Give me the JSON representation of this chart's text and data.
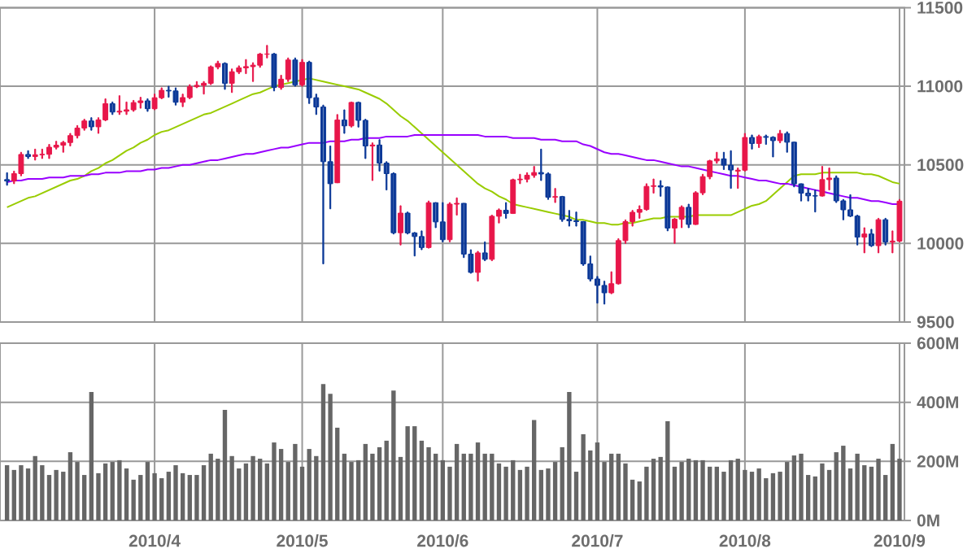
{
  "chart_data": [
    {
      "type": "candlestick",
      "categories": [
        null,
        null,
        null,
        null,
        null,
        null,
        null,
        null,
        null,
        null,
        null,
        null,
        null,
        null,
        null,
        null,
        null,
        null,
        null,
        null,
        null,
        "2010/4",
        null,
        null,
        null,
        null,
        null,
        null,
        null,
        null,
        null,
        null,
        null,
        null,
        null,
        null,
        null,
        null,
        null,
        null,
        null,
        null,
        "2010/5",
        null,
        null,
        null,
        null,
        null,
        null,
        null,
        null,
        null,
        null,
        null,
        null,
        null,
        null,
        null,
        null,
        null,
        null,
        null,
        "2010/6",
        null,
        null,
        null,
        null,
        null,
        null,
        null,
        null,
        null,
        null,
        null,
        null,
        null,
        null,
        null,
        null,
        null,
        null,
        null,
        null,
        null,
        "2010/7",
        null,
        null,
        null,
        null,
        null,
        null,
        null,
        null,
        null,
        null,
        null,
        null,
        null,
        null,
        null,
        null,
        null,
        null,
        null,
        null,
        "2010/8",
        null,
        null,
        null,
        null,
        null,
        null,
        null,
        null,
        null,
        null,
        null,
        null,
        null,
        null,
        null,
        null,
        null,
        null,
        null,
        null,
        null,
        "2010/9"
      ],
      "ohlc": [
        [
          10406,
          10450,
          10370,
          10397
        ],
        [
          10397,
          10460,
          10380,
          10444
        ],
        [
          10444,
          10580,
          10430,
          10566
        ],
        [
          10566,
          10590,
          10540,
          10553
        ],
        [
          10553,
          10600,
          10530,
          10564
        ],
        [
          10564,
          10600,
          10540,
          10567
        ],
        [
          10567,
          10630,
          10540,
          10612
        ],
        [
          10612,
          10650,
          10600,
          10625
        ],
        [
          10625,
          10650,
          10580,
          10642
        ],
        [
          10642,
          10700,
          10620,
          10686
        ],
        [
          10686,
          10750,
          10670,
          10734
        ],
        [
          10734,
          10790,
          10720,
          10779
        ],
        [
          10779,
          10800,
          10720,
          10742
        ],
        [
          10742,
          10800,
          10700,
          10786
        ],
        [
          10786,
          10920,
          10780,
          10889
        ],
        [
          10889,
          10900,
          10820,
          10836
        ],
        [
          10836,
          10940,
          10820,
          10841
        ],
        [
          10841,
          10900,
          10820,
          10850
        ],
        [
          10850,
          10910,
          10840,
          10896
        ],
        [
          10896,
          10930,
          10860,
          10907
        ],
        [
          10907,
          10920,
          10840,
          10857
        ],
        [
          10857,
          10950,
          10850,
          10927
        ],
        [
          10927,
          10990,
          10920,
          10974
        ],
        [
          10974,
          11000,
          10930,
          10970
        ],
        [
          10970,
          10990,
          10880,
          10898
        ],
        [
          10898,
          10950,
          10870,
          10928
        ],
        [
          10928,
          11010,
          10920,
          10997
        ],
        [
          10997,
          11030,
          10990,
          11006
        ],
        [
          11006,
          11030,
          10950,
          11019
        ],
        [
          11019,
          11130,
          11010,
          11123
        ],
        [
          11123,
          11160,
          11110,
          11145
        ],
        [
          11145,
          11150,
          10980,
          11019
        ],
        [
          11019,
          11110,
          10960,
          11092
        ],
        [
          11092,
          11130,
          11080,
          11117
        ],
        [
          11117,
          11170,
          11080,
          11125
        ],
        [
          11125,
          11150,
          11030,
          11134
        ],
        [
          11134,
          11210,
          11120,
          11204
        ],
        [
          11204,
          11260,
          11180,
          11205
        ],
        [
          11205,
          11210,
          10970,
          10992
        ],
        [
          10992,
          11070,
          10980,
          11045
        ],
        [
          11045,
          11180,
          11030,
          11167
        ],
        [
          11167,
          11180,
          11000,
          11009
        ],
        [
          11009,
          11170,
          11000,
          11152
        ],
        [
          11152,
          11160,
          10890,
          10927
        ],
        [
          10927,
          10950,
          10820,
          10868
        ],
        [
          10868,
          10880,
          9870,
          10520
        ],
        [
          10520,
          10620,
          10220,
          10380
        ],
        [
          10386,
          10820,
          10386,
          10785
        ],
        [
          10785,
          10850,
          10700,
          10748
        ],
        [
          10748,
          10900,
          10740,
          10897
        ],
        [
          10897,
          10900,
          10740,
          10783
        ],
        [
          10783,
          10790,
          10540,
          10620
        ],
        [
          10620,
          10640,
          10400,
          10626
        ],
        [
          10626,
          10660,
          10460,
          10511
        ],
        [
          10511,
          10520,
          10340,
          10444
        ],
        [
          10444,
          10450,
          10060,
          10068
        ],
        [
          10068,
          10240,
          9990,
          10193
        ],
        [
          10193,
          10200,
          10060,
          10067
        ],
        [
          10067,
          10070,
          9920,
          10044
        ],
        [
          10044,
          10080,
          9960,
          9974
        ],
        [
          9974,
          10270,
          9970,
          10259
        ],
        [
          10259,
          10260,
          10100,
          10137
        ],
        [
          10137,
          10260,
          10010,
          10024
        ],
        [
          10024,
          10260,
          10010,
          10250
        ],
        [
          10250,
          10290,
          10180,
          10255
        ],
        [
          10255,
          10255,
          9910,
          9932
        ],
        [
          9932,
          9960,
          9810,
          9816
        ],
        [
          9816,
          9950,
          9760,
          9940
        ],
        [
          9940,
          10010,
          9890,
          9899
        ],
        [
          9899,
          10180,
          9890,
          10173
        ],
        [
          10173,
          10220,
          10130,
          10211
        ],
        [
          10211,
          10260,
          10160,
          10191
        ],
        [
          10191,
          10410,
          10190,
          10405
        ],
        [
          10405,
          10440,
          10380,
          10409
        ],
        [
          10409,
          10450,
          10390,
          10434
        ],
        [
          10434,
          10490,
          10420,
          10451
        ],
        [
          10451,
          10600,
          10400,
          10442
        ],
        [
          10442,
          10450,
          10280,
          10294
        ],
        [
          10294,
          10350,
          10260,
          10298
        ],
        [
          10298,
          10300,
          10140,
          10153
        ],
        [
          10153,
          10210,
          10110,
          10144
        ],
        [
          10144,
          10200,
          10110,
          10139
        ],
        [
          10139,
          10140,
          9860,
          9870
        ],
        [
          9870,
          9920,
          9760,
          9774
        ],
        [
          9774,
          9790,
          9620,
          9733
        ],
        [
          9733,
          9760,
          9614,
          9686
        ],
        [
          9686,
          9820,
          9680,
          9744
        ],
        [
          9744,
          10030,
          9740,
          10018
        ],
        [
          10018,
          10150,
          10000,
          10139
        ],
        [
          10139,
          10210,
          10110,
          10198
        ],
        [
          10198,
          10240,
          10160,
          10216
        ],
        [
          10216,
          10380,
          10210,
          10363
        ],
        [
          10363,
          10410,
          10320,
          10367
        ],
        [
          10367,
          10400,
          10300,
          10359
        ],
        [
          10359,
          10360,
          10080,
          10098
        ],
        [
          10098,
          10160,
          10000,
          10154
        ],
        [
          10154,
          10240,
          10100,
          10230
        ],
        [
          10230,
          10250,
          10100,
          10121
        ],
        [
          10121,
          10330,
          10120,
          10322
        ],
        [
          10322,
          10440,
          10310,
          10425
        ],
        [
          10425,
          10530,
          10410,
          10525
        ],
        [
          10525,
          10580,
          10510,
          10538
        ],
        [
          10538,
          10580,
          10470,
          10498
        ],
        [
          10498,
          10590,
          10350,
          10467
        ],
        [
          10460,
          10480,
          10350,
          10466
        ],
        [
          10466,
          10700,
          10460,
          10674
        ],
        [
          10674,
          10690,
          10600,
          10636
        ],
        [
          10636,
          10690,
          10610,
          10680
        ],
        [
          10680,
          10690,
          10630,
          10675
        ],
        [
          10675,
          10680,
          10550,
          10654
        ],
        [
          10654,
          10720,
          10640,
          10699
        ],
        [
          10699,
          10710,
          10580,
          10644
        ],
        [
          10644,
          10645,
          10360,
          10379
        ],
        [
          10379,
          10380,
          10270,
          10320
        ],
        [
          10320,
          10350,
          10270,
          10303
        ],
        [
          10303,
          10340,
          10200,
          10302
        ],
        [
          10302,
          10490,
          10300,
          10406
        ],
        [
          10406,
          10480,
          10340,
          10416
        ],
        [
          10416,
          10430,
          10260,
          10271
        ],
        [
          10271,
          10280,
          10150,
          10214
        ],
        [
          10214,
          10310,
          10170,
          10174
        ],
        [
          10174,
          10180,
          9990,
          10040
        ],
        [
          10040,
          10100,
          9940,
          10060
        ],
        [
          10060,
          10090,
          9980,
          9986
        ],
        [
          9986,
          10160,
          9940,
          10151
        ],
        [
          10151,
          10160,
          9990,
          10009
        ],
        [
          10009,
          10080,
          9940,
          10015
        ],
        [
          10015,
          10280,
          10010,
          10269
        ]
      ],
      "colors": [
        "#0a3797",
        "#e8174a",
        "#e8174a",
        "#0a3797",
        "#e8174a",
        "#e8174a",
        "#e8174a",
        "#e8174a",
        "#e8174a",
        "#e8174a",
        "#e8174a",
        "#e8174a",
        "#0a3797",
        "#e8174a",
        "#e8174a",
        "#0a3797",
        "#e8174a",
        "#e8174a",
        "#e8174a",
        "#e8174a",
        "#0a3797",
        "#e8174a",
        "#e8174a",
        "#0a3797",
        "#0a3797",
        "#e8174a",
        "#e8174a",
        "#e8174a",
        "#e8174a",
        "#e8174a",
        "#e8174a",
        "#0a3797",
        "#e8174a",
        "#e8174a",
        "#e8174a",
        "#e8174a",
        "#e8174a",
        "#e8174a",
        "#0a3797",
        "#e8174a",
        "#e8174a",
        "#0a3797",
        "#e8174a",
        "#0a3797",
        "#0a3797",
        "#0a3797",
        "#0a3797",
        "#e8174a",
        "#0a3797",
        "#e8174a",
        "#0a3797",
        "#0a3797",
        "#e8174a",
        "#0a3797",
        "#0a3797",
        "#0a3797",
        "#e8174a",
        "#0a3797",
        "#0a3797",
        "#0a3797",
        "#e8174a",
        "#0a3797",
        "#0a3797",
        "#e8174a",
        "#e8174a",
        "#0a3797",
        "#0a3797",
        "#e8174a",
        "#0a3797",
        "#e8174a",
        "#e8174a",
        "#0a3797",
        "#e8174a",
        "#e8174a",
        "#e8174a",
        "#e8174a",
        "#0a3797",
        "#0a3797",
        "#e8174a",
        "#0a3797",
        "#0a3797",
        "#0a3797",
        "#0a3797",
        "#0a3797",
        "#0a3797",
        "#0a3797",
        "#e8174a",
        "#e8174a",
        "#e8174a",
        "#e8174a",
        "#e8174a",
        "#e8174a",
        "#e8174a",
        "#0a3797",
        "#0a3797",
        "#e8174a",
        "#e8174a",
        "#0a3797",
        "#e8174a",
        "#e8174a",
        "#e8174a",
        "#e8174a",
        "#0a3797",
        "#0a3797",
        "#e8174a",
        "#e8174a",
        "#0a3797",
        "#e8174a",
        "#0a3797",
        "#0a3797",
        "#e8174a",
        "#0a3797",
        "#0a3797",
        "#0a3797",
        "#0a3797",
        "#0a3797",
        "#e8174a",
        "#e8174a",
        "#0a3797",
        "#0a3797",
        "#0a3797",
        "#0a3797",
        "#e8174a",
        "#0a3797",
        "#e8174a",
        "#0a3797",
        "#e8174a",
        "#e8174a"
      ],
      "series": [
        {
          "type": "line",
          "color": "#99cc00",
          "values": [
            10230,
            10250,
            10270,
            10290,
            10300,
            10320,
            10340,
            10360,
            10380,
            10400,
            10410,
            10430,
            10460,
            10480,
            10510,
            10530,
            10560,
            10590,
            10610,
            10640,
            10660,
            10690,
            10710,
            10720,
            10740,
            10760,
            10780,
            10800,
            10820,
            10830,
            10850,
            10870,
            10890,
            10910,
            10930,
            10950,
            10960,
            10980,
            11000,
            11010,
            11020,
            11030,
            11040,
            11050,
            11040,
            11030,
            11020,
            11010,
            11000,
            10990,
            10980,
            10960,
            10940,
            10920,
            10890,
            10850,
            10810,
            10780,
            10740,
            10700,
            10660,
            10620,
            10580,
            10540,
            10500,
            10460,
            10420,
            10380,
            10350,
            10330,
            10300,
            10280,
            10250,
            10240,
            10230,
            10220,
            10210,
            10200,
            10190,
            10180,
            10170,
            10150,
            10150,
            10140,
            10130,
            10130,
            10120,
            10120,
            10130,
            10130,
            10140,
            10150,
            10160,
            10160,
            10170,
            10170,
            10170,
            10170,
            10180,
            10180,
            10180,
            10180,
            10180,
            10180,
            10200,
            10220,
            10240,
            10250,
            10270,
            10310,
            10350,
            10390,
            10430,
            10440,
            10440,
            10440,
            10450,
            10450,
            10450,
            10450,
            10450,
            10450,
            10440,
            10440,
            10430,
            10410,
            10390,
            10380
          ]
        },
        {
          "type": "line",
          "color": "#9900ff",
          "values": [
            10390,
            10400,
            10400,
            10410,
            10410,
            10410,
            10420,
            10420,
            10420,
            10430,
            10430,
            10430,
            10440,
            10440,
            10450,
            10450,
            10450,
            10460,
            10460,
            10460,
            10470,
            10470,
            10480,
            10480,
            10490,
            10500,
            10500,
            10510,
            10520,
            10530,
            10530,
            10540,
            10550,
            10560,
            10570,
            10570,
            10580,
            10590,
            10600,
            10610,
            10610,
            10620,
            10630,
            10640,
            10640,
            10640,
            10650,
            10650,
            10650,
            10660,
            10660,
            10670,
            10670,
            10670,
            10680,
            10680,
            10680,
            10680,
            10690,
            10690,
            10690,
            10690,
            10690,
            10690,
            10690,
            10690,
            10690,
            10690,
            10680,
            10680,
            10680,
            10680,
            10670,
            10670,
            10670,
            10670,
            10660,
            10660,
            10660,
            10650,
            10650,
            10650,
            10630,
            10620,
            10600,
            10580,
            10570,
            10570,
            10560,
            10550,
            10540,
            10530,
            10530,
            10520,
            10510,
            10500,
            10490,
            10490,
            10480,
            10470,
            10460,
            10450,
            10440,
            10430,
            10430,
            10420,
            10410,
            10400,
            10400,
            10390,
            10380,
            10380,
            10370,
            10360,
            10350,
            10340,
            10330,
            10320,
            10310,
            10300,
            10290,
            10290,
            10280,
            10270,
            10270,
            10260,
            10250,
            10250
          ]
        }
      ],
      "ylim": [
        9500,
        11500
      ],
      "yticks": [
        9500,
        10000,
        10500,
        11000,
        11500
      ],
      "grid": true,
      "tick_labels": "y"
    },
    {
      "type": "bar",
      "categories": [
        null,
        null,
        null,
        null,
        null,
        null,
        null,
        null,
        null,
        null,
        null,
        null,
        null,
        null,
        null,
        null,
        null,
        null,
        null,
        null,
        null,
        "2010/4",
        null,
        null,
        null,
        null,
        null,
        null,
        null,
        null,
        null,
        null,
        null,
        null,
        null,
        null,
        null,
        null,
        null,
        null,
        null,
        null,
        "2010/5",
        null,
        null,
        null,
        null,
        null,
        null,
        null,
        null,
        null,
        null,
        null,
        null,
        null,
        null,
        null,
        null,
        null,
        null,
        null,
        "2010/6",
        null,
        null,
        null,
        null,
        null,
        null,
        null,
        null,
        null,
        null,
        null,
        null,
        null,
        null,
        null,
        null,
        null,
        null,
        null,
        null,
        null,
        "2010/7",
        null,
        null,
        null,
        null,
        null,
        null,
        null,
        null,
        null,
        null,
        null,
        null,
        null,
        null,
        null,
        null,
        null,
        null,
        null,
        null,
        "2010/8",
        null,
        null,
        null,
        null,
        null,
        null,
        null,
        null,
        null,
        null,
        null,
        null,
        null,
        null,
        null,
        null,
        null,
        null,
        null,
        null,
        null,
        "2010/9"
      ],
      "values": [
        187,
        171,
        187,
        176,
        218,
        187,
        154,
        171,
        165,
        231,
        198,
        154,
        435,
        160,
        193,
        198,
        204,
        176,
        138,
        154,
        198,
        160,
        143,
        165,
        187,
        160,
        154,
        154,
        187,
        226,
        209,
        374,
        218,
        176,
        193,
        218,
        209,
        193,
        264,
        242,
        198,
        259,
        182,
        242,
        218,
        462,
        429,
        314,
        226,
        198,
        204,
        259,
        226,
        248,
        270,
        440,
        215,
        319,
        319,
        270,
        248,
        226,
        204,
        182,
        259,
        226,
        226,
        264,
        226,
        226,
        193,
        182,
        204,
        171,
        182,
        340,
        171,
        176,
        198,
        248,
        435,
        165,
        292,
        237,
        264,
        198,
        226,
        226,
        193,
        138,
        132,
        182,
        209,
        215,
        336,
        182,
        198,
        209,
        204,
        204,
        182,
        182,
        165,
        204,
        209,
        171,
        165,
        176,
        143,
        160,
        165,
        198,
        220,
        226,
        154,
        149,
        193,
        171,
        231,
        253,
        176,
        226,
        187,
        182,
        209,
        154,
        259,
        209
      ],
      "color": "#666666",
      "ylim": [
        0,
        600
      ],
      "yticks": [
        {
          "value": 0,
          "label": "0M"
        },
        {
          "value": 200,
          "label": "200M"
        },
        {
          "value": 400,
          "label": "400M"
        },
        {
          "value": 600,
          "label": "600M"
        }
      ],
      "grid": true
    }
  ]
}
